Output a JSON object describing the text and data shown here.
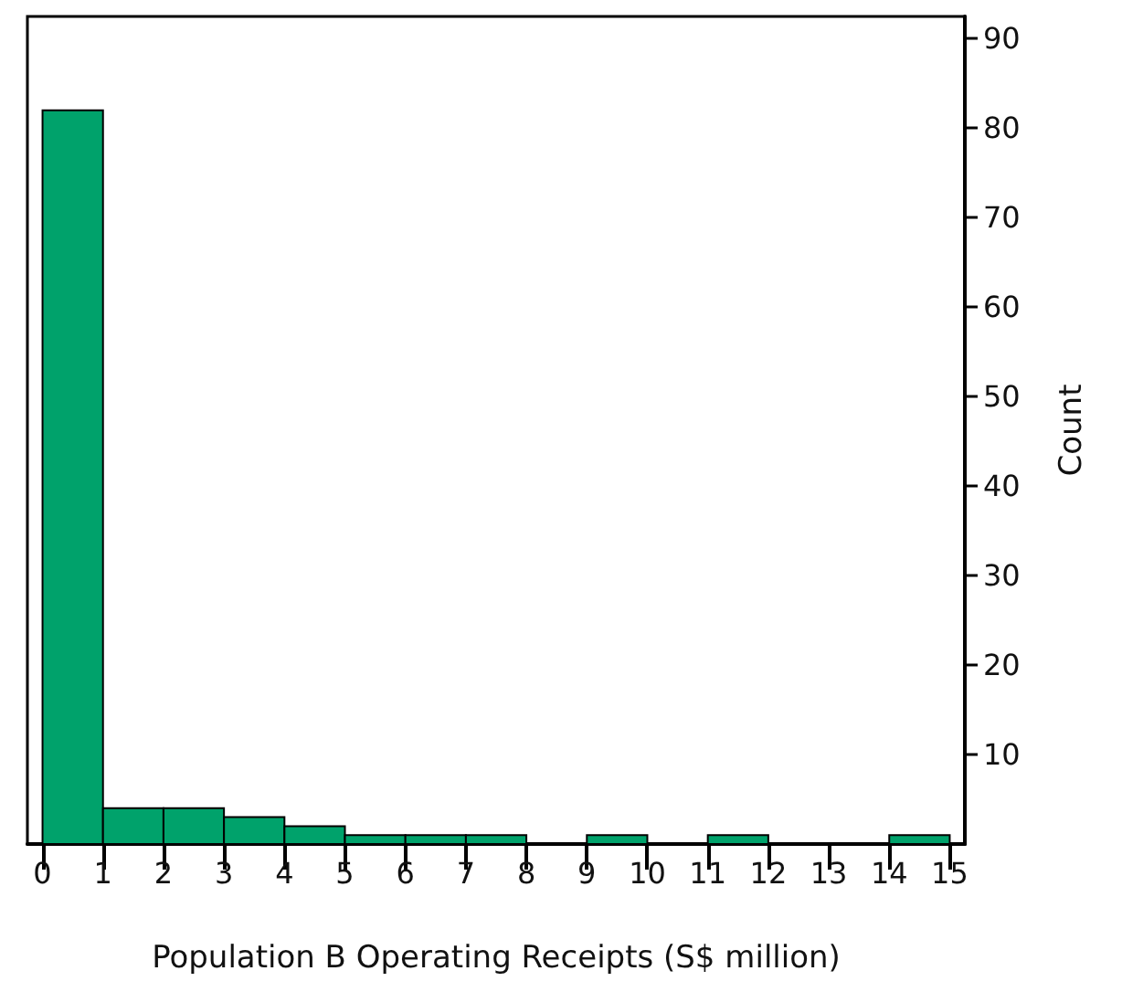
{
  "chart_data": {
    "type": "histogram",
    "xlabel": "Population B Operating Receipts (S$ million)",
    "ylabel": "Count",
    "bins": [
      0,
      1,
      2,
      3,
      4,
      5,
      6,
      7,
      8,
      9,
      10,
      11,
      12,
      13,
      14,
      15
    ],
    "values": [
      82,
      4,
      4,
      3,
      2,
      1,
      1,
      1,
      0,
      1,
      0,
      1,
      0,
      0,
      1
    ],
    "color": "#00a26b",
    "xlim": [
      -0.25,
      15.25
    ],
    "xticks": [
      0,
      1,
      2,
      3,
      4,
      5,
      6,
      7,
      8,
      9,
      10,
      11,
      12,
      13,
      14,
      15
    ],
    "ylim": [
      0,
      92.5
    ],
    "yticks": [
      10,
      20,
      30,
      40,
      50,
      60,
      70,
      80,
      90
    ],
    "grid": false
  }
}
